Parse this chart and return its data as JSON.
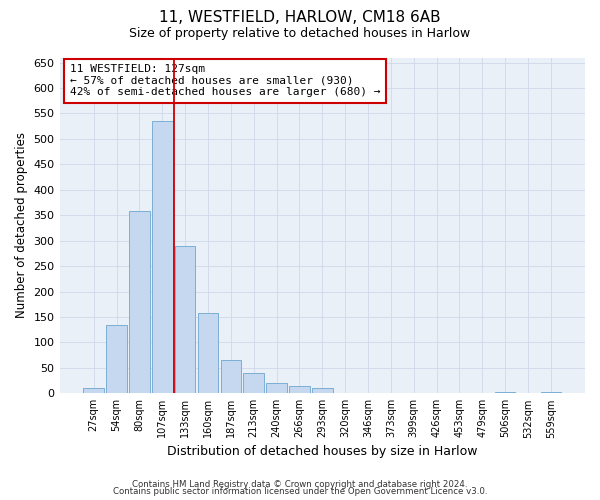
{
  "title_line1": "11, WESTFIELD, HARLOW, CM18 6AB",
  "title_line2": "Size of property relative to detached houses in Harlow",
  "xlabel": "Distribution of detached houses by size in Harlow",
  "ylabel": "Number of detached properties",
  "bar_labels": [
    "27sqm",
    "54sqm",
    "80sqm",
    "107sqm",
    "133sqm",
    "160sqm",
    "187sqm",
    "213sqm",
    "240sqm",
    "266sqm",
    "293sqm",
    "320sqm",
    "346sqm",
    "373sqm",
    "399sqm",
    "426sqm",
    "453sqm",
    "479sqm",
    "506sqm",
    "532sqm",
    "559sqm"
  ],
  "bar_values": [
    10,
    135,
    358,
    535,
    290,
    157,
    65,
    40,
    20,
    14,
    10,
    1,
    0,
    0,
    0,
    0,
    0,
    0,
    3,
    0,
    3
  ],
  "bar_color": "#C5D8F0",
  "bar_edge_color": "#7BAFD4",
  "vline_x": 3.5,
  "vline_color": "#CC0000",
  "annotation_text": "11 WESTFIELD: 127sqm\n← 57% of detached houses are smaller (930)\n42% of semi-detached houses are larger (680) →",
  "annotation_box_color": "#ffffff",
  "annotation_box_edge": "#cc0000",
  "footnote1": "Contains HM Land Registry data © Crown copyright and database right 2024.",
  "footnote2": "Contains public sector information licensed under the Open Government Licence v3.0.",
  "ylim": [
    0,
    660
  ],
  "yticks": [
    0,
    50,
    100,
    150,
    200,
    250,
    300,
    350,
    400,
    450,
    500,
    550,
    600,
    650
  ],
  "grid_color": "#d0d8e8",
  "plot_bg_color": "#eaf0f8"
}
